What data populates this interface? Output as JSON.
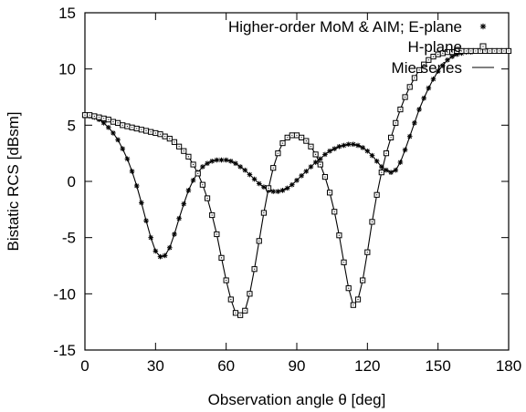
{
  "chart_data": {
    "type": "line",
    "title": "",
    "xlabel": "Observation angle θ [deg]",
    "ylabel": "Bistatic RCS [dBsm]",
    "xlim": [
      0,
      180
    ],
    "ylim": [
      -15,
      15
    ],
    "xticks": [
      0,
      30,
      60,
      90,
      120,
      150,
      180
    ],
    "yticks": [
      -15,
      -10,
      -5,
      0,
      5,
      10,
      15
    ],
    "grid": false,
    "legend_position": "top-right",
    "series": [
      {
        "name": "Higher-order MoM & AIM; E-plane",
        "style": "markers",
        "marker": "asterisk",
        "color": "#000000",
        "x": [
          0,
          2,
          4,
          6,
          8,
          10,
          12,
          14,
          16,
          18,
          20,
          22,
          24,
          26,
          28,
          30,
          32,
          34,
          36,
          38,
          40,
          42,
          44,
          46,
          48,
          50,
          52,
          54,
          56,
          58,
          60,
          62,
          64,
          66,
          68,
          70,
          72,
          74,
          76,
          78,
          80,
          82,
          84,
          86,
          88,
          90,
          92,
          94,
          96,
          98,
          100,
          102,
          104,
          106,
          108,
          110,
          112,
          114,
          116,
          118,
          120,
          122,
          124,
          126,
          128,
          130,
          132,
          134,
          136,
          138,
          140,
          142,
          144,
          146,
          148,
          150,
          152,
          154,
          156,
          158,
          160,
          162,
          164,
          166,
          168,
          170,
          172,
          174,
          176,
          178,
          180
        ],
        "y": [
          5.8,
          5.8,
          5.7,
          5.5,
          5.2,
          4.8,
          4.3,
          3.7,
          2.9,
          2.0,
          0.9,
          -0.4,
          -1.9,
          -3.5,
          -5.0,
          -6.2,
          -6.7,
          -6.6,
          -5.9,
          -4.7,
          -3.3,
          -2.0,
          -0.8,
          0.1,
          0.8,
          1.3,
          1.6,
          1.8,
          1.9,
          1.9,
          1.9,
          1.8,
          1.6,
          1.3,
          1.0,
          0.6,
          0.2,
          -0.2,
          -0.5,
          -0.8,
          -0.9,
          -0.9,
          -0.8,
          -0.6,
          -0.3,
          0.1,
          0.5,
          0.9,
          1.3,
          1.7,
          2.0,
          2.4,
          2.7,
          2.9,
          3.1,
          3.2,
          3.3,
          3.3,
          3.2,
          3.0,
          2.7,
          2.3,
          1.8,
          1.3,
          1.0,
          0.8,
          1.0,
          1.7,
          2.8,
          4.0,
          5.2,
          6.4,
          7.4,
          8.3,
          9.1,
          9.8,
          10.3,
          10.8,
          11.1,
          11.3,
          11.4,
          11.5,
          11.5,
          11.6,
          11.6,
          11.6,
          11.6,
          11.6,
          11.6,
          11.6,
          11.6
        ]
      },
      {
        "name": "H-plane",
        "style": "markers",
        "marker": "square",
        "color": "#000000",
        "x": [
          0,
          2,
          4,
          6,
          8,
          10,
          12,
          14,
          16,
          18,
          20,
          22,
          24,
          26,
          28,
          30,
          32,
          34,
          36,
          38,
          40,
          42,
          44,
          46,
          48,
          50,
          52,
          54,
          56,
          58,
          60,
          62,
          64,
          66,
          68,
          70,
          72,
          74,
          76,
          78,
          80,
          82,
          84,
          86,
          88,
          90,
          92,
          94,
          96,
          98,
          100,
          102,
          104,
          106,
          108,
          110,
          112,
          114,
          116,
          118,
          120,
          122,
          124,
          126,
          128,
          130,
          132,
          134,
          136,
          138,
          140,
          142,
          144,
          146,
          148,
          150,
          152,
          154,
          156,
          158,
          160,
          162,
          164,
          166,
          168,
          170,
          172,
          174,
          176,
          178,
          180
        ],
        "y": [
          5.9,
          5.9,
          5.8,
          5.7,
          5.6,
          5.5,
          5.3,
          5.2,
          5.0,
          4.9,
          4.8,
          4.7,
          4.6,
          4.5,
          4.4,
          4.3,
          4.2,
          4.0,
          3.8,
          3.5,
          3.1,
          2.7,
          2.2,
          1.5,
          0.7,
          -0.3,
          -1.5,
          -3.0,
          -4.7,
          -6.8,
          -8.8,
          -10.5,
          -11.7,
          -11.9,
          -11.5,
          -10.0,
          -7.8,
          -5.3,
          -2.8,
          -0.6,
          1.2,
          2.5,
          3.4,
          3.9,
          4.1,
          4.1,
          3.9,
          3.6,
          3.1,
          2.4,
          1.5,
          0.4,
          -1.0,
          -2.7,
          -4.8,
          -7.2,
          -9.5,
          -11.0,
          -10.5,
          -8.8,
          -6.3,
          -3.6,
          -1.2,
          0.8,
          2.5,
          3.9,
          5.2,
          6.4,
          7.5,
          8.4,
          9.2,
          9.9,
          10.4,
          10.8,
          11.1,
          11.3,
          11.4,
          11.5,
          11.5,
          11.6,
          11.6,
          11.6,
          11.6,
          11.6,
          11.6,
          11.6,
          11.6,
          11.6,
          11.6,
          11.6,
          11.6
        ]
      },
      {
        "name": "Mie series",
        "style": "line",
        "color": "#000000",
        "curves": [
          {
            "x": [
              0,
              2,
              4,
              6,
              8,
              10,
              12,
              14,
              16,
              18,
              20,
              22,
              24,
              26,
              28,
              30,
              32,
              34,
              36,
              38,
              40,
              42,
              44,
              46,
              48,
              50,
              52,
              54,
              56,
              58,
              60,
              62,
              64,
              66,
              68,
              70,
              72,
              74,
              76,
              78,
              80,
              82,
              84,
              86,
              88,
              90,
              92,
              94,
              96,
              98,
              100,
              102,
              104,
              106,
              108,
              110,
              112,
              114,
              116,
              118,
              120,
              122,
              124,
              126,
              128,
              130,
              132,
              134,
              136,
              138,
              140,
              142,
              144,
              146,
              148,
              150,
              152,
              154,
              156,
              158,
              160,
              162,
              164,
              166,
              168,
              170,
              172,
              174,
              176,
              178,
              180
            ],
            "y": [
              5.8,
              5.8,
              5.7,
              5.5,
              5.2,
              4.8,
              4.3,
              3.7,
              2.9,
              2.0,
              0.9,
              -0.4,
              -1.9,
              -3.5,
              -5.0,
              -6.2,
              -6.7,
              -6.6,
              -5.9,
              -4.7,
              -3.3,
              -2.0,
              -0.8,
              0.1,
              0.8,
              1.3,
              1.6,
              1.8,
              1.9,
              1.9,
              1.9,
              1.8,
              1.6,
              1.3,
              1.0,
              0.6,
              0.2,
              -0.2,
              -0.5,
              -0.8,
              -0.9,
              -0.9,
              -0.8,
              -0.6,
              -0.3,
              0.1,
              0.5,
              0.9,
              1.3,
              1.7,
              2.0,
              2.4,
              2.7,
              2.9,
              3.1,
              3.2,
              3.3,
              3.3,
              3.2,
              3.0,
              2.7,
              2.3,
              1.8,
              1.3,
              1.0,
              0.8,
              1.0,
              1.7,
              2.8,
              4.0,
              5.2,
              6.4,
              7.4,
              8.3,
              9.1,
              9.8,
              10.3,
              10.8,
              11.1,
              11.3,
              11.4,
              11.5,
              11.5,
              11.6,
              11.6,
              11.6,
              11.6,
              11.6,
              11.6,
              11.6,
              11.6
            ]
          },
          {
            "x": [
              0,
              2,
              4,
              6,
              8,
              10,
              12,
              14,
              16,
              18,
              20,
              22,
              24,
              26,
              28,
              30,
              32,
              34,
              36,
              38,
              40,
              42,
              44,
              46,
              48,
              50,
              52,
              54,
              56,
              58,
              60,
              62,
              64,
              66,
              68,
              70,
              72,
              74,
              76,
              78,
              80,
              82,
              84,
              86,
              88,
              90,
              92,
              94,
              96,
              98,
              100,
              102,
              104,
              106,
              108,
              110,
              112,
              114,
              116,
              118,
              120,
              122,
              124,
              126,
              128,
              130,
              132,
              134,
              136,
              138,
              140,
              142,
              144,
              146,
              148,
              150,
              152,
              154,
              156,
              158,
              160,
              162,
              164,
              166,
              168,
              170,
              172,
              174,
              176,
              178,
              180
            ],
            "y": [
              5.9,
              5.9,
              5.8,
              5.7,
              5.6,
              5.5,
              5.3,
              5.2,
              5.0,
              4.9,
              4.8,
              4.7,
              4.6,
              4.5,
              4.4,
              4.3,
              4.2,
              4.0,
              3.8,
              3.5,
              3.1,
              2.7,
              2.2,
              1.5,
              0.7,
              -0.3,
              -1.5,
              -3.0,
              -4.7,
              -6.8,
              -8.8,
              -10.5,
              -11.7,
              -11.9,
              -11.5,
              -10.0,
              -7.8,
              -5.3,
              -2.8,
              -0.6,
              1.2,
              2.5,
              3.4,
              3.9,
              4.1,
              4.1,
              3.9,
              3.6,
              3.1,
              2.4,
              1.5,
              0.4,
              -1.0,
              -2.7,
              -4.8,
              -7.2,
              -9.5,
              -11.0,
              -10.5,
              -8.8,
              -6.3,
              -3.6,
              -1.2,
              0.8,
              2.5,
              3.9,
              5.2,
              6.4,
              7.5,
              8.4,
              9.2,
              9.9,
              10.4,
              10.8,
              11.1,
              11.3,
              11.4,
              11.5,
              11.5,
              11.6,
              11.6,
              11.6,
              11.6,
              11.6,
              11.6,
              11.6,
              11.6,
              11.6,
              11.6,
              11.6,
              11.6
            ]
          }
        ]
      }
    ]
  }
}
